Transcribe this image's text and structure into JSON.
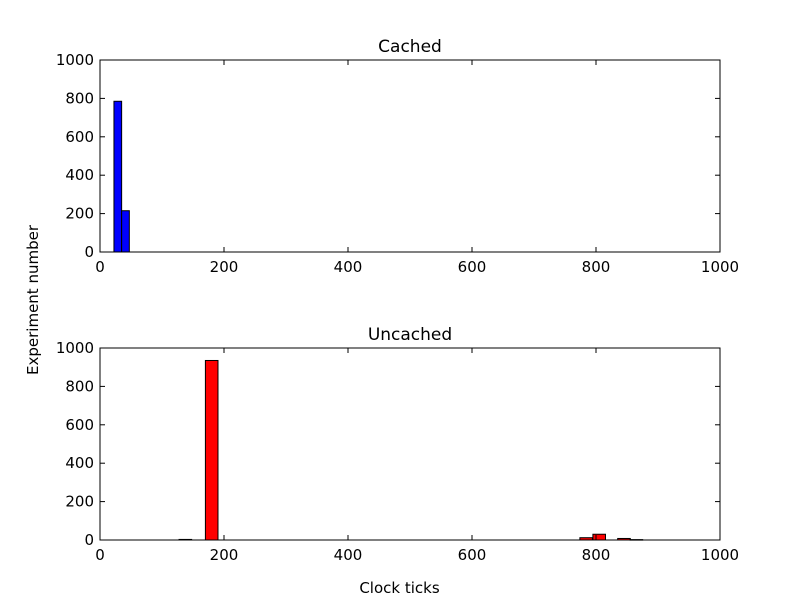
{
  "figure": {
    "ylabel": "Experiment number",
    "xlabel": "Clock ticks"
  },
  "chart_data": [
    {
      "type": "bar",
      "title": "Cached",
      "xlim": [
        0,
        1000
      ],
      "ylim": [
        0,
        1000
      ],
      "xticks": [
        "0",
        "200",
        "400",
        "600",
        "800",
        "1000"
      ],
      "yticks": [
        "0",
        "200",
        "400",
        "600",
        "800",
        "1000"
      ],
      "color": "#0000ff",
      "bin_width": 12.4,
      "bins": [
        {
          "x": 22.5,
          "value": 785
        },
        {
          "x": 34.9,
          "value": 215
        }
      ]
    },
    {
      "type": "bar",
      "title": "Uncached",
      "xlim": [
        0,
        1000
      ],
      "ylim": [
        0,
        1000
      ],
      "xticks": [
        "0",
        "200",
        "400",
        "600",
        "800",
        "1000"
      ],
      "yticks": [
        "0",
        "200",
        "400",
        "600",
        "800",
        "1000"
      ],
      "color": "#ff0000",
      "bin_width": 20.3,
      "bins": [
        {
          "x": 127.5,
          "value": 3
        },
        {
          "x": 170,
          "value": 935
        },
        {
          "x": 774,
          "value": 12
        },
        {
          "x": 795,
          "value": 30
        },
        {
          "x": 835,
          "value": 8
        },
        {
          "x": 855,
          "value": 2
        }
      ]
    }
  ]
}
